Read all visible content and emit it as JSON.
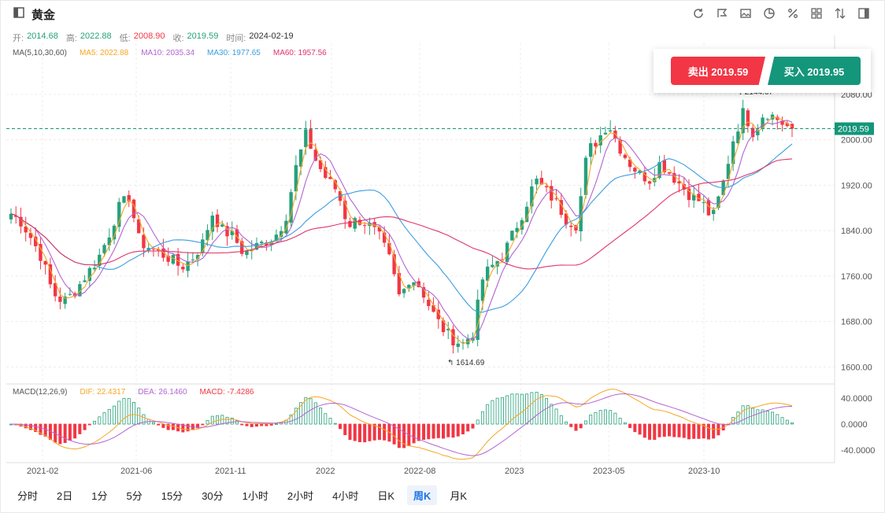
{
  "header": {
    "title": "黄金",
    "tools": [
      "refresh-icon",
      "draw-icon",
      "image-icon",
      "pie-icon",
      "percent-icon",
      "grid-icon",
      "sort-icon",
      "panel-icon"
    ]
  },
  "ohlc": {
    "open_label": "开:",
    "open": "2014.68",
    "high_label": "高:",
    "high": "2022.88",
    "low_label": "低:",
    "low": "2008.90",
    "close_label": "收:",
    "close": "2019.59",
    "time_label": "时间:",
    "time": "2024-02-19"
  },
  "ma_legend": {
    "title": "MA(5,10,30,60)",
    "ma5": "MA5: 2022.88",
    "ma10": "MA10: 2035.34",
    "ma30": "MA30: 1977.65",
    "ma60": "MA60: 1957.56"
  },
  "macd_legend": {
    "title": "MACD(12,26,9)",
    "dif": "DIF: 22.4317",
    "dea": "DEA: 26.1460",
    "macd": "MACD: -7.4286"
  },
  "trade": {
    "sell_label": "卖出 2019.59",
    "buy_label": "买入 2019.95"
  },
  "price_axis": [
    "2080.00",
    "2000.00",
    "1920.00",
    "1840.00",
    "1760.00",
    "1680.00",
    "1600.00"
  ],
  "current_price": "2019.59",
  "annotations": {
    "low": "1614.69",
    "high": "2144.67"
  },
  "macd_axis": [
    "40.0000",
    "0.0000",
    "-40.0000"
  ],
  "time_axis": [
    "2021-02",
    "2021-06",
    "2021-11",
    "2022",
    "2022-08",
    "2023",
    "2023-05",
    "2023-10"
  ],
  "periods": [
    {
      "label": "分时"
    },
    {
      "label": "2日"
    },
    {
      "label": "1分"
    },
    {
      "label": "5分"
    },
    {
      "label": "15分"
    },
    {
      "label": "30分"
    },
    {
      "label": "1小时"
    },
    {
      "label": "2小时"
    },
    {
      "label": "4小时"
    },
    {
      "label": "日K"
    },
    {
      "label": "周K"
    },
    {
      "label": "月K"
    }
  ],
  "active_period": "周K",
  "colors": {
    "up": "#26a17b",
    "down": "#f23645",
    "ma5": "#f5a623",
    "ma10": "#b265d2",
    "ma30": "#3a9de0",
    "ma60": "#e0356a"
  },
  "chart_data": {
    "type": "candlestick",
    "y_range": [
      1570,
      2170
    ],
    "x_range": [
      "2021-01",
      "2024-02"
    ],
    "x_labels": [
      "2021-02",
      "2021-06",
      "2021-11",
      "2022",
      "2022-08",
      "2023",
      "2023-05",
      "2023-10"
    ],
    "y_ticks": [
      1600,
      1680,
      1760,
      1840,
      1920,
      2000,
      2080
    ],
    "close_path": [
      [
        0,
        1870
      ],
      [
        3,
        1855
      ],
      [
        6,
        1825
      ],
      [
        9,
        1790
      ],
      [
        12,
        1730
      ],
      [
        15,
        1715
      ],
      [
        18,
        1730
      ],
      [
        22,
        1765
      ],
      [
        25,
        1790
      ],
      [
        28,
        1830
      ],
      [
        31,
        1880
      ],
      [
        34,
        1900
      ],
      [
        37,
        1820
      ],
      [
        40,
        1810
      ],
      [
        43,
        1800
      ],
      [
        46,
        1790
      ],
      [
        49,
        1775
      ],
      [
        52,
        1790
      ],
      [
        55,
        1815
      ],
      [
        58,
        1870
      ],
      [
        61,
        1840
      ],
      [
        64,
        1830
      ],
      [
        67,
        1800
      ],
      [
        70,
        1810
      ],
      [
        73,
        1820
      ],
      [
        76,
        1830
      ],
      [
        79,
        1860
      ],
      [
        82,
        1950
      ],
      [
        85,
        2010
      ],
      [
        88,
        1960
      ],
      [
        91,
        1930
      ],
      [
        94,
        1910
      ],
      [
        97,
        1850
      ],
      [
        100,
        1860
      ],
      [
        103,
        1850
      ],
      [
        106,
        1830
      ],
      [
        109,
        1790
      ],
      [
        112,
        1720
      ],
      [
        115,
        1760
      ],
      [
        118,
        1740
      ],
      [
        121,
        1700
      ],
      [
        124,
        1670
      ],
      [
        127,
        1650
      ],
      [
        130,
        1640
      ],
      [
        133,
        1660
      ],
      [
        136,
        1760
      ],
      [
        139,
        1780
      ],
      [
        142,
        1800
      ],
      [
        145,
        1840
      ],
      [
        148,
        1880
      ],
      [
        151,
        1930
      ],
      [
        154,
        1910
      ],
      [
        157,
        1890
      ],
      [
        160,
        1860
      ],
      [
        163,
        1850
      ],
      [
        166,
        1980
      ],
      [
        169,
        2000
      ],
      [
        172,
        2030
      ],
      [
        175,
        1990
      ],
      [
        178,
        1960
      ],
      [
        181,
        1940
      ],
      [
        184,
        1930
      ],
      [
        187,
        1960
      ],
      [
        190,
        1940
      ],
      [
        193,
        1920
      ],
      [
        196,
        1900
      ],
      [
        199,
        1890
      ],
      [
        202,
        1860
      ],
      [
        205,
        1920
      ],
      [
        208,
        2000
      ],
      [
        211,
        2050
      ],
      [
        214,
        2010
      ],
      [
        217,
        2050
      ],
      [
        220,
        2040
      ],
      [
        223,
        2025
      ],
      [
        225,
        2019.59
      ]
    ],
    "ma5_current": 2022.88,
    "ma10_current": 2035.34,
    "ma30_current": 1977.65,
    "ma60_current": 1957.56,
    "macd": {
      "dif": 22.4317,
      "dea": 26.146,
      "macd": -7.4286,
      "y_range": [
        -50,
        50
      ]
    }
  }
}
